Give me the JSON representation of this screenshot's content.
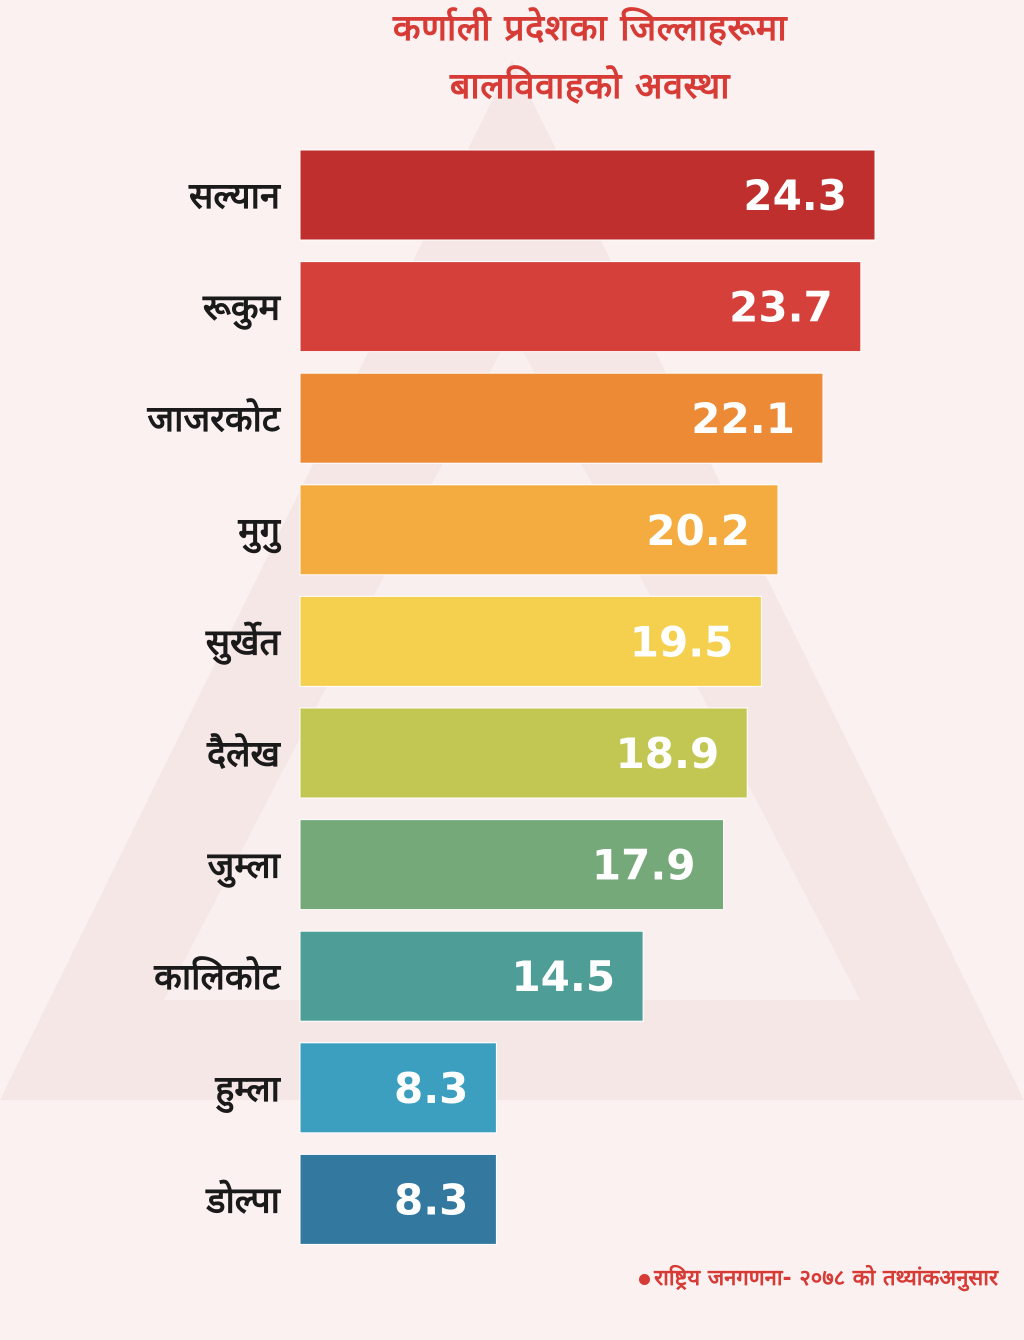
{
  "chart_data": {
    "type": "bar",
    "orientation": "horizontal",
    "title": "कर्णाली प्रदेशका जिल्लाहरूमा बालविवाहको अवस्था",
    "title_lines": [
      "कर्णाली प्रदेशका जिल्लाहरूमा",
      "बालविवाहको अवस्था"
    ],
    "categories": [
      "सल्यान",
      "रूकुम",
      "जाजरकोट",
      "मुगु",
      "सुर्खेत",
      "दैलेख",
      "जुम्ला",
      "कालिकोट",
      "हुम्ला",
      "डोल्पा"
    ],
    "values": [
      24.3,
      23.7,
      22.1,
      20.2,
      19.5,
      18.9,
      17.9,
      14.5,
      8.3,
      8.3
    ],
    "value_labels": [
      "24.3",
      "23.7",
      "22.1",
      "20.2",
      "19.5",
      "18.9",
      "17.9",
      "14.5",
      "8.3",
      "8.3"
    ],
    "colors": [
      "#bf2f2d",
      "#d5403a",
      "#ec8a35",
      "#f4ab3f",
      "#f5d04f",
      "#c1c752",
      "#75a97a",
      "#4e9d96",
      "#3c9fbf",
      "#33799f"
    ],
    "xlim": [
      0,
      24.3
    ],
    "grid": false,
    "legend": "none"
  },
  "footnote": "राष्ट्रिय जनगणना- २०७८ को तथ्यांकअनुसार",
  "accent_color": "#d63b36"
}
